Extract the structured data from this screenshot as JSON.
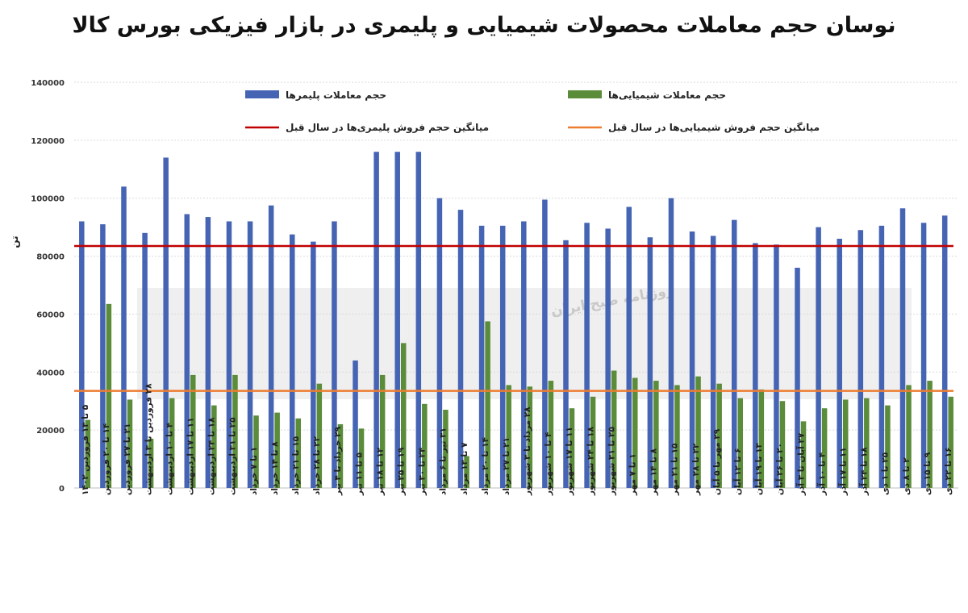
{
  "chart_data": {
    "type": "bar",
    "title": "نوسان حجم معاملات محصولات شیمیایی و پلیمری در بازار فیزیکی بورس کالا",
    "ylabel": "تن",
    "xlabel": "",
    "ylim": [
      0,
      140000
    ],
    "yticks": [
      "0",
      "20000",
      "40000",
      "60000",
      "80000",
      "100000",
      "120000",
      "140000"
    ],
    "grid": true,
    "legend_position": "top",
    "categories": [
      "۵ تا ۱۳ فروردین ۱۴۰۲",
      "۱۴ تا ۲۰ فروردین",
      "۲۱ تا ۲۷ فروردین",
      "۲۸ فروردین تا ۳ اردیبهشت",
      "۴ تا ۱۰ اردیبهشت",
      "۱۱ تا ۱۷ اردیبهشت",
      "۱۸ تا ۲۴ اردیبهشت",
      "۲۵ تا ۳۱ اردیبهشت",
      "۱ تا ۷ خرداد",
      "۸ تا ۱۴ خرداد",
      "۱۵ تا ۲۱ خرداد",
      "۲۲ تا ۲۸ خرداد",
      "۲۹ خرداد تا ۴ تیر",
      "۵ تا ۱۱ تیر",
      "۱۲ تا ۱۸ تیر",
      "۱۹ تا ۲۵ تیر",
      "۲۴ تا ۳۰ تیر",
      "۳۱ تیر تا ۶ مرداد",
      "۷ تا ۱۳ مرداد",
      "۱۴ تا ۲۰ مرداد",
      "۲۱ تا ۲۷ مرداد",
      "۲۸ مرداد تا ۳ شهریور",
      "۴ تا ۱۰ شهریور",
      "۱۱ تا ۱۷ شهریور",
      "۱۸ تا ۲۴ شهریور",
      "۲۵ تا ۳۱ شهریور",
      "۱ تا ۷ مهر",
      "۸ تا ۱۴ مهر",
      "۱۵ تا ۲۱ مهر",
      "۲۲ تا ۲۸ مهر",
      "۲۹ مهر تا ۵ آبان",
      "۶ تا ۱۲ آبان",
      "۱۳ تا ۱۹ آبان",
      "۲۰ تا ۲۶ آبان",
      "۲۷ آبان تا ۳ آذر",
      "۴ تا ۱۰ آذر",
      "۱۱ تا ۱۷ آذر",
      "۱۸ تا ۲۴ آذر",
      "۲۵ تا ۱ دی",
      "۲ تا ۸ دی",
      "۹ تا ۱۵ دی",
      "۱۶ تا ۲۲ دی"
    ],
    "series": [
      {
        "name": "حجم معاملات پلیمرها",
        "color": "#4664b4",
        "values": [
          92000,
          91000,
          104000,
          88000,
          114000,
          94500,
          93500,
          92000,
          92000,
          97500,
          87500,
          85000,
          92000,
          44000,
          116000,
          116000,
          116000,
          100000,
          96000,
          90500,
          90500,
          92000,
          99500,
          85500,
          91500,
          89500,
          97000,
          86500,
          100000,
          88500,
          87000,
          92500,
          84500,
          84000,
          76000,
          90000,
          86000,
          89000,
          90500,
          96500,
          91500,
          94000
        ]
      },
      {
        "name": "حجم معاملات شیمیایی‌ها",
        "color": "#5b8c3a",
        "values": [
          23500,
          63500,
          30500,
          17000,
          31000,
          39000,
          28500,
          39000,
          25000,
          26000,
          24000,
          36000,
          22000,
          20500,
          39000,
          50000,
          29000,
          27000,
          11000,
          57500,
          35500,
          35000,
          37000,
          27500,
          31500,
          40500,
          38000,
          37000,
          35500,
          38500,
          36000,
          31000,
          34000,
          30000,
          23000,
          27500,
          30500,
          31000,
          28500,
          35500,
          37000,
          31500
        ]
      }
    ],
    "reference_lines": [
      {
        "name": "میانگین حجم فروش پلیمری‌ها در سال قبل",
        "value": 83500,
        "color": "#c00000"
      },
      {
        "name": "میانگین حجم فروش شیمیایی‌ها در سال قبل",
        "value": 33500,
        "color": "#ed7d31"
      }
    ],
    "watermark": "روزنامه صبح ایران"
  }
}
